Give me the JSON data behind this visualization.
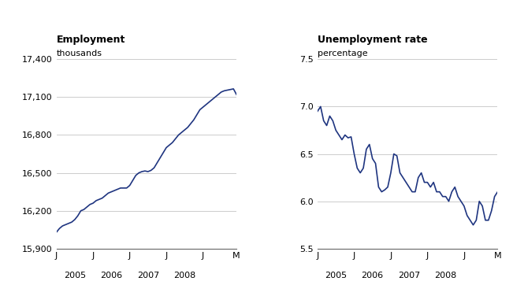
{
  "title_left": "Employment",
  "title_right": "Unemployment rate",
  "ylabel_left": "thousands",
  "ylabel_right": "percentage",
  "line_color": "#1f3580",
  "background_color": "#ffffff",
  "grid_color": "#cccccc",
  "ylim_left": [
    15900,
    17400
  ],
  "ylim_right": [
    5.5,
    7.5
  ],
  "yticks_left": [
    15900,
    16200,
    16500,
    16800,
    17100,
    17400
  ],
  "yticks_right": [
    5.5,
    6.0,
    6.5,
    7.0,
    7.5
  ],
  "emp_data": [
    16030,
    16060,
    16080,
    16090,
    16100,
    16110,
    16130,
    16160,
    16200,
    16210,
    16230,
    16250,
    16260,
    16280,
    16290,
    16300,
    16320,
    16340,
    16350,
    16360,
    16370,
    16380,
    16380,
    16380,
    16400,
    16440,
    16480,
    16500,
    16510,
    16515,
    16510,
    16520,
    16540,
    16580,
    16620,
    16660,
    16700,
    16720,
    16740,
    16770,
    16800,
    16820,
    16840,
    16860,
    16890,
    16920,
    16960,
    17000,
    17020,
    17040,
    17060,
    17080,
    17100,
    17120,
    17140,
    17150,
    17155,
    17160,
    17165,
    17120
  ],
  "unemp_data": [
    6.95,
    7.0,
    6.85,
    6.8,
    6.9,
    6.85,
    6.75,
    6.7,
    6.65,
    6.7,
    6.67,
    6.68,
    6.5,
    6.35,
    6.3,
    6.35,
    6.55,
    6.6,
    6.45,
    6.4,
    6.15,
    6.1,
    6.12,
    6.15,
    6.3,
    6.5,
    6.48,
    6.3,
    6.25,
    6.2,
    6.15,
    6.1,
    6.1,
    6.25,
    6.3,
    6.2,
    6.2,
    6.15,
    6.2,
    6.1,
    6.1,
    6.05,
    6.05,
    6.0,
    6.1,
    6.15,
    6.05,
    6.0,
    5.95,
    5.85,
    5.8,
    5.75,
    5.8,
    6.0,
    5.95,
    5.8,
    5.8,
    5.9,
    6.05,
    6.1
  ],
  "xtick_positions": [
    0,
    12,
    24,
    36,
    48,
    59
  ],
  "xtick_labels": [
    "J",
    "J",
    "J",
    "J",
    "J",
    "M"
  ],
  "year_positions": [
    6,
    18,
    30,
    42,
    54
  ],
  "year_labels": [
    "2005",
    "2006",
    "2007",
    "2008",
    ""
  ]
}
